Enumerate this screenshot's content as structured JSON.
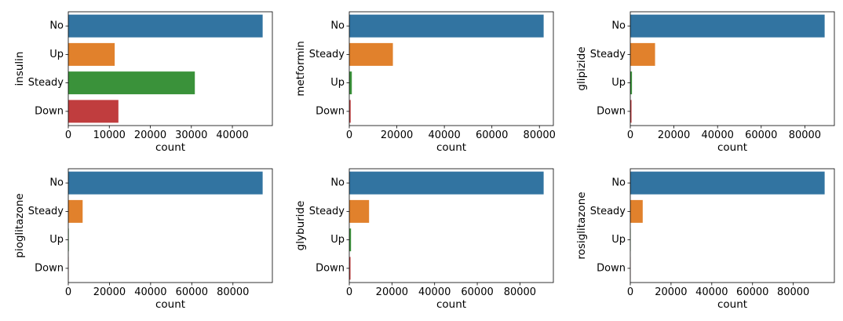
{
  "colors": {
    "No": "#3274a1",
    "Up_insulin": "#e1812c",
    "Steady_insulin": "#3a923a",
    "Down_insulin": "#c03d3e",
    "Steady": "#e1812c",
    "Up": "#3a923a",
    "Down": "#c03d3e"
  },
  "chart_data": [
    {
      "type": "bar",
      "orientation": "horizontal",
      "categories": [
        "No",
        "Up",
        "Steady",
        "Down"
      ],
      "values": [
        47383,
        11316,
        30849,
        12218
      ],
      "bar_colors": [
        "#3274a1",
        "#e1812c",
        "#3a923a",
        "#c03d3e"
      ],
      "xlabel": "count",
      "ylabel": "insulin",
      "xlim": [
        0,
        49750
      ],
      "xticks": [
        0,
        10000,
        20000,
        30000,
        40000
      ],
      "xtick_labels": [
        "0",
        "10000",
        "20000",
        "30000",
        "40000"
      ]
    },
    {
      "type": "bar",
      "orientation": "horizontal",
      "categories": [
        "No",
        "Steady",
        "Up",
        "Down"
      ],
      "values": [
        81778,
        18346,
        1067,
        575
      ],
      "bar_colors": [
        "#3274a1",
        "#e1812c",
        "#3a923a",
        "#c03d3e"
      ],
      "xlabel": "count",
      "ylabel": "metformin",
      "xlim": [
        0,
        85867
      ],
      "xticks": [
        0,
        20000,
        40000,
        60000,
        80000
      ],
      "xtick_labels": [
        "0",
        "20000",
        "40000",
        "60000",
        "80000"
      ]
    },
    {
      "type": "bar",
      "orientation": "horizontal",
      "categories": [
        "No",
        "Steady",
        "Up",
        "Down"
      ],
      "values": [
        89080,
        11356,
        770,
        560
      ],
      "bar_colors": [
        "#3274a1",
        "#e1812c",
        "#3a923a",
        "#c03d3e"
      ],
      "xlabel": "count",
      "ylabel": "glipizide",
      "xlim": [
        0,
        93534
      ],
      "xticks": [
        0,
        20000,
        40000,
        60000,
        80000
      ],
      "xtick_labels": [
        "0",
        "20000",
        "40000",
        "60000",
        "80000"
      ]
    },
    {
      "type": "bar",
      "orientation": "horizontal",
      "categories": [
        "No",
        "Steady",
        "Up",
        "Down"
      ],
      "values": [
        94438,
        6976,
        234,
        118
      ],
      "bar_colors": [
        "#3274a1",
        "#e1812c",
        "#3a923a",
        "#c03d3e"
      ],
      "xlabel": "count",
      "ylabel": "pioglitazone",
      "xlim": [
        0,
        99160
      ],
      "xticks": [
        0,
        20000,
        40000,
        60000,
        80000
      ],
      "xtick_labels": [
        "0",
        "20000",
        "40000",
        "60000",
        "80000"
      ]
    },
    {
      "type": "bar",
      "orientation": "horizontal",
      "categories": [
        "No",
        "Steady",
        "Up",
        "Down"
      ],
      "values": [
        91116,
        9274,
        812,
        564
      ],
      "bar_colors": [
        "#3274a1",
        "#e1812c",
        "#3a923a",
        "#c03d3e"
      ],
      "xlabel": "count",
      "ylabel": "glyburide",
      "xlim": [
        0,
        95672
      ],
      "xticks": [
        0,
        20000,
        40000,
        60000,
        80000
      ],
      "xtick_labels": [
        "0",
        "20000",
        "40000",
        "60000",
        "80000"
      ]
    },
    {
      "type": "bar",
      "orientation": "horizontal",
      "categories": [
        "No",
        "Steady",
        "Up",
        "Down"
      ],
      "values": [
        95401,
        6100,
        178,
        87
      ],
      "bar_colors": [
        "#3274a1",
        "#e1812c",
        "#3a923a",
        "#c03d3e"
      ],
      "xlabel": "count",
      "ylabel": "rosiglitazone",
      "xlim": [
        0,
        100171
      ],
      "xticks": [
        0,
        20000,
        40000,
        60000,
        80000
      ],
      "xtick_labels": [
        "0",
        "20000",
        "40000",
        "60000",
        "80000"
      ]
    }
  ]
}
